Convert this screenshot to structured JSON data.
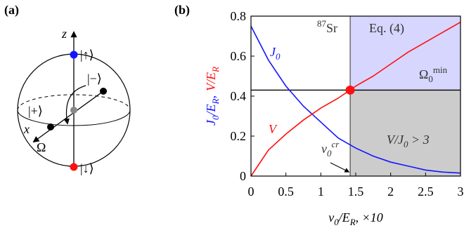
{
  "panel_a": {
    "label": "(a)",
    "z": "z",
    "up": "|↑⟩",
    "minus": "|−⟩",
    "plus": "|+⟩",
    "x": "x",
    "omega": "Ω",
    "down": "|↓⟩"
  },
  "chart_data": {
    "type": "line",
    "panel_label": "(b)",
    "xlabel": [
      {
        "text": "v"
      },
      {
        "sub": "0"
      },
      {
        "text": "/E"
      },
      {
        "sub": "R"
      },
      {
        "text": ", ×10"
      }
    ],
    "ylabel": [
      [
        {
          "text": "J"
        },
        {
          "sub": "0"
        },
        {
          "text": "/E"
        },
        {
          "sub": "R"
        },
        {
          "text": ","
        }
      ],
      [
        {
          "text": "V/E"
        },
        {
          "sub": "R"
        }
      ]
    ],
    "x": [
      0,
      0.25,
      0.5,
      0.75,
      1,
      1.25,
      1.5,
      1.75,
      2,
      2.25,
      2.5,
      2.75,
      3
    ],
    "series": [
      {
        "name": [
          {
            "text": "J"
          },
          {
            "sub": "0"
          }
        ],
        "color": "#1515ff",
        "values": [
          0.75,
          0.58,
          0.45,
          0.35,
          0.27,
          0.19,
          0.14,
          0.1,
          0.07,
          0.05,
          0.03,
          0.02,
          0.015
        ]
      },
      {
        "name": [
          {
            "text": "V"
          }
        ],
        "color": "#ff1010",
        "values": [
          0,
          0.13,
          0.21,
          0.28,
          0.34,
          0.39,
          0.45,
          0.5,
          0.56,
          0.62,
          0.67,
          0.72,
          0.77
        ]
      }
    ],
    "critical_v0": 1.42,
    "omega_min_level": 0.43,
    "xlim": [
      0,
      3
    ],
    "xticks": [
      0,
      0.5,
      1,
      1.5,
      2,
      2.5,
      3
    ],
    "ylim": [
      0,
      0.8
    ],
    "yticks": [
      0,
      0.2,
      0.4,
      0.6,
      0.8
    ],
    "upper_region_color": "#d6d6ff",
    "lower_region_color": "#cccccc",
    "annotations": {
      "isotope": [
        {
          "sup": "87"
        },
        {
          "text": "Sr"
        }
      ],
      "equation": [
        {
          "text": "Eq. (4)"
        }
      ],
      "omega_min": [
        {
          "text": "Ω"
        },
        {
          "sub": "0"
        },
        {
          "sup": "min"
        }
      ],
      "ratio": [
        {
          "text": "V/J"
        },
        {
          "sub": "0"
        },
        {
          "text": " > 3"
        }
      ],
      "v0_cr": [
        {
          "text": "v"
        },
        {
          "sub": "0"
        },
        {
          "sup": "cr"
        }
      ]
    }
  }
}
